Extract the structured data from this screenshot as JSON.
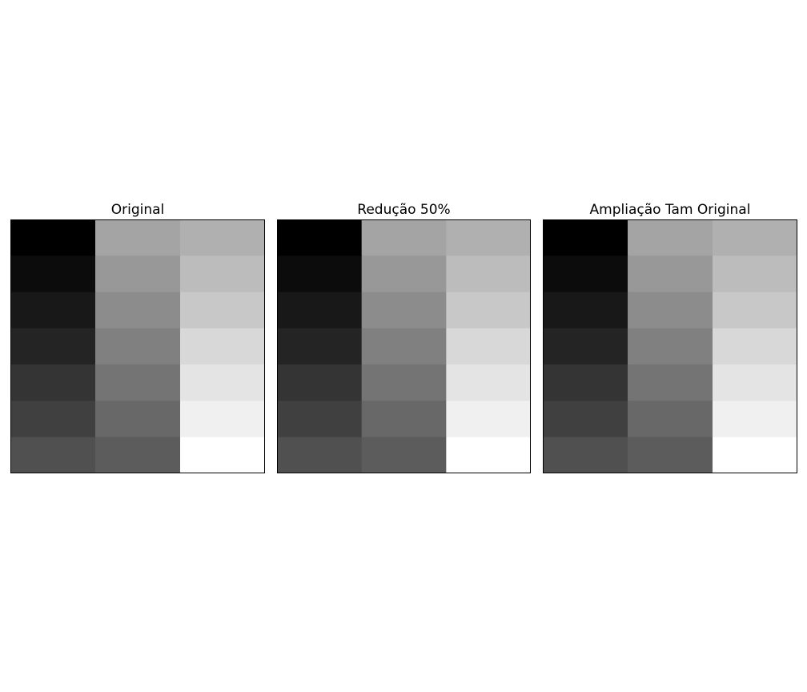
{
  "chart_data": [
    {
      "type": "heatmap",
      "title": "Original",
      "colormap": "gray",
      "rows": 7,
      "cols": 3,
      "values": [
        [
          0,
          164,
          176
        ],
        [
          12,
          152,
          188
        ],
        [
          24,
          140,
          200
        ],
        [
          36,
          128,
          216
        ],
        [
          52,
          116,
          228
        ],
        [
          64,
          104,
          240
        ],
        [
          80,
          92,
          255
        ]
      ]
    },
    {
      "type": "heatmap",
      "title": "Redução 50%",
      "colormap": "gray",
      "rows": 7,
      "cols": 3,
      "values": [
        [
          0,
          164,
          176
        ],
        [
          12,
          152,
          188
        ],
        [
          24,
          140,
          200
        ],
        [
          36,
          128,
          216
        ],
        [
          52,
          116,
          228
        ],
        [
          64,
          104,
          240
        ],
        [
          80,
          92,
          255
        ]
      ]
    },
    {
      "type": "heatmap",
      "title": "Ampliação Tam Original",
      "colormap": "gray",
      "rows": 7,
      "cols": 3,
      "values": [
        [
          0,
          164,
          176
        ],
        [
          12,
          152,
          188
        ],
        [
          24,
          140,
          200
        ],
        [
          36,
          128,
          216
        ],
        [
          52,
          116,
          228
        ],
        [
          64,
          104,
          240
        ],
        [
          80,
          92,
          255
        ]
      ]
    }
  ]
}
